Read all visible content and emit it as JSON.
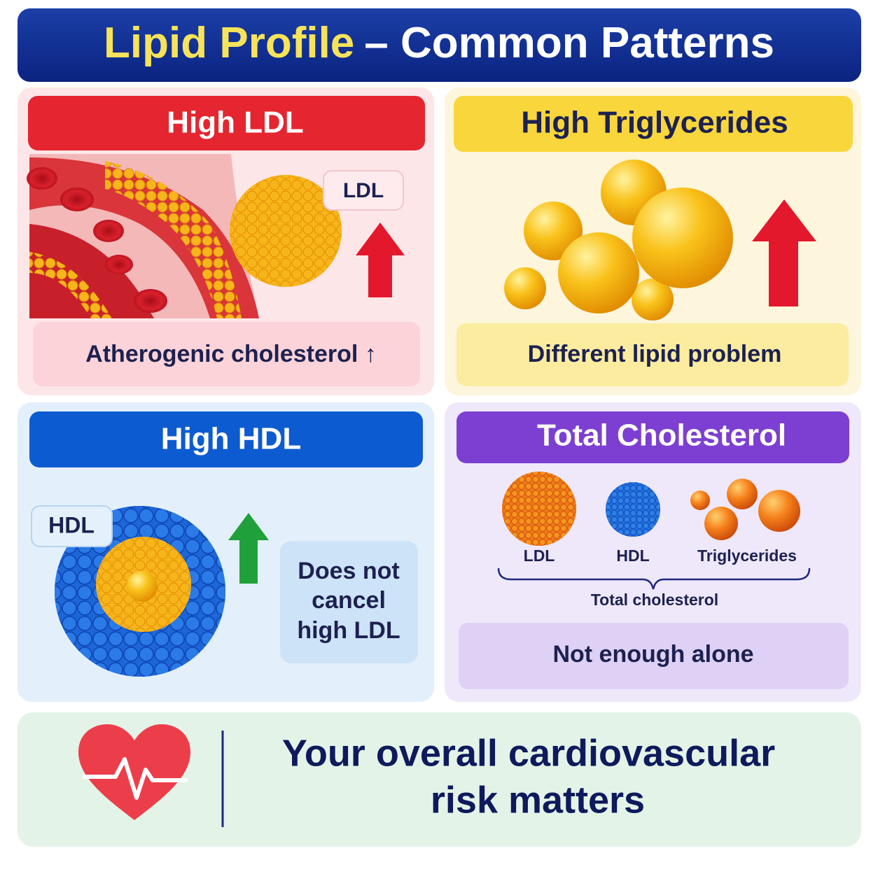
{
  "header": {
    "title_highlight": "Lipid Profile",
    "title_rest": "– Common Patterns"
  },
  "panels": [
    {
      "heading": "High LDL",
      "label": "LDL",
      "caption": "Atherogenic cholesterol ↑"
    },
    {
      "heading": "High Triglycerides",
      "caption": "Different lipid problem"
    },
    {
      "heading": "High HDL",
      "label": "HDL",
      "note": [
        "Does not",
        "cancel",
        "high LDL"
      ]
    },
    {
      "heading": "Total Cholesterol",
      "items": [
        "LDL",
        "HDL",
        "Triglycerides"
      ],
      "brace_label": "Total cholesterol",
      "caption": "Not enough alone"
    }
  ],
  "footer": {
    "lines": [
      "Your overall cardiovascular",
      "risk matters"
    ]
  }
}
